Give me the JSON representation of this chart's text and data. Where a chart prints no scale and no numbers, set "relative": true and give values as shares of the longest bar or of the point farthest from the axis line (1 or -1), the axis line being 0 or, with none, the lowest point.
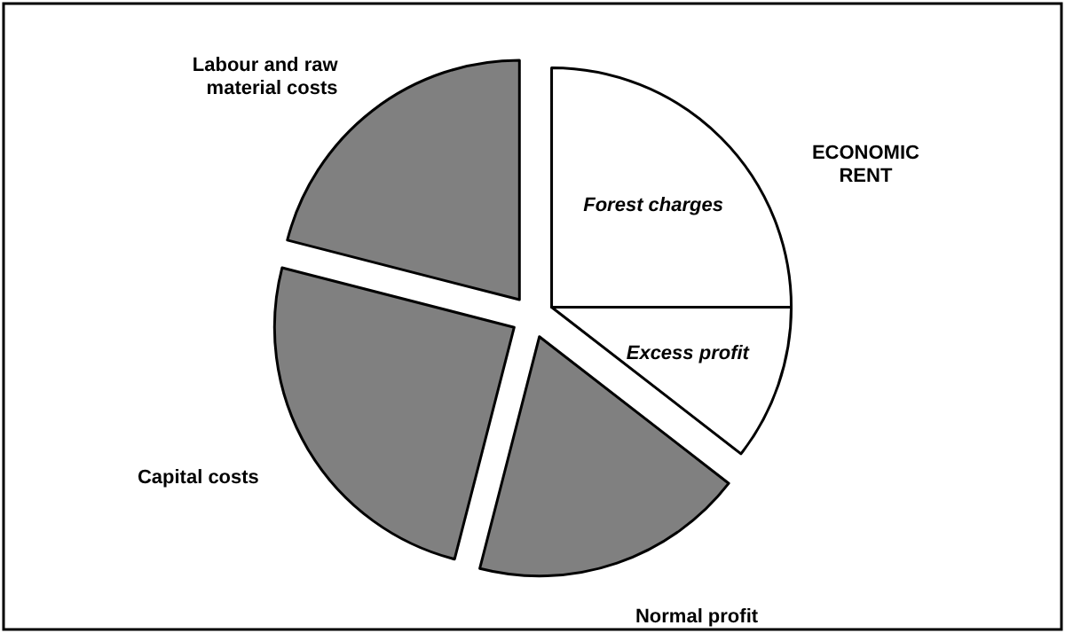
{
  "chart_data": {
    "type": "pie",
    "relative": true,
    "categories": [
      "Forest charges",
      "Excess profit",
      "Normal profit",
      "Capital costs",
      "Labour and raw\nmaterial costs"
    ],
    "values": [
      25,
      10.5,
      18.5,
      25,
      21
    ],
    "colors": [
      "#ffffff",
      "#ffffff",
      "#808080",
      "#808080",
      "#808080"
    ],
    "annotations": [
      "ECONOMIC\nRENT"
    ]
  }
}
